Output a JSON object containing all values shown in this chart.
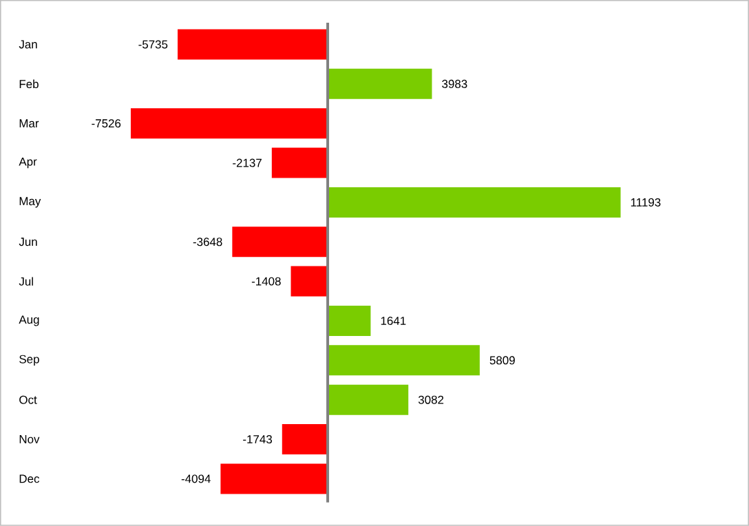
{
  "chart_data": {
    "type": "bar",
    "orientation": "horizontal",
    "categories": [
      "Jan",
      "Feb",
      "Mar",
      "Apr",
      "May",
      "Jun",
      "Jul",
      "Aug",
      "Sep",
      "Oct",
      "Nov",
      "Dec"
    ],
    "values": [
      -5735,
      3983,
      -7526,
      -2137,
      11193,
      -3648,
      -1408,
      1641,
      5809,
      3082,
      -1743,
      -4094
    ],
    "colors": [
      "#ff0000",
      "#7acc00",
      "#ff0000",
      "#ff0000",
      "#7acc00",
      "#ff0000",
      "#ff0000",
      "#7acc00",
      "#7acc00",
      "#7acc00",
      "#ff0000",
      "#ff0000"
    ],
    "data_labels": true
  }
}
